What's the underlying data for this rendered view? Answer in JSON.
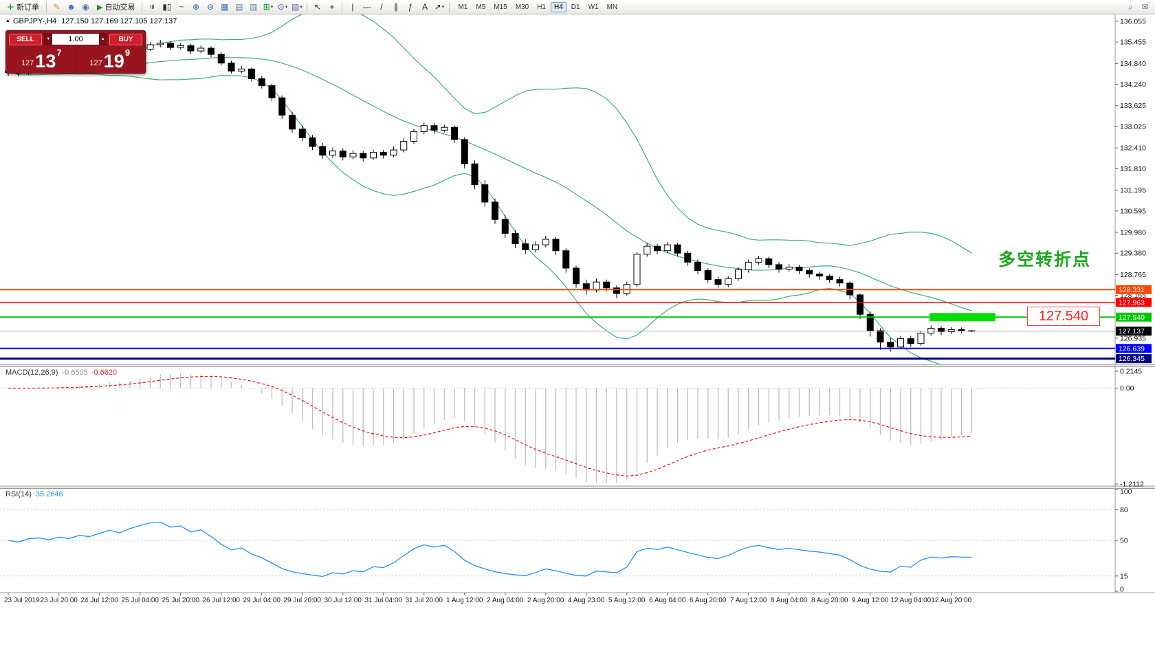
{
  "toolbar": {
    "caret_glyph": "▾",
    "timeframes": [
      "M1",
      "M5",
      "M15",
      "M30",
      "H1",
      "H4",
      "D1",
      "W1",
      "MN"
    ],
    "active_timeframe": "H4",
    "groups": [
      {
        "type": "button",
        "name": "new-order",
        "glyph": "＋",
        "glyph_color": "#13962a",
        "label": "新订单"
      },
      {
        "type": "sep"
      },
      {
        "type": "icon",
        "name": "metaeditor-icon",
        "glyph": "✎",
        "color": "#c9971c"
      },
      {
        "type": "icon",
        "name": "profile-icon",
        "glyph": "☻",
        "color": "#3b6fb5"
      },
      {
        "type": "icon",
        "name": "broadcast-icon",
        "glyph": "◉",
        "color": "#3b6fb5"
      },
      {
        "type": "button",
        "name": "autotrading",
        "glyph": "▶",
        "glyph_color": "#13962a",
        "label": "自动交易"
      },
      {
        "type": "sep"
      },
      {
        "type": "icon",
        "name": "bar-chart-icon",
        "glyph": "≡",
        "color": "#333333",
        "rot": true
      },
      {
        "type": "icon",
        "name": "candlestick-chart-icon",
        "glyph": "▮▯",
        "color": "#333333"
      },
      {
        "type": "icon",
        "name": "line-chart-icon",
        "glyph": "~",
        "color": "#1f7a1f"
      },
      {
        "type": "icon",
        "name": "zoom-in-icon",
        "glyph": "⊕",
        "color": "#2b5fb0"
      },
      {
        "type": "icon",
        "name": "zoom-out-icon",
        "glyph": "⊖",
        "color": "#2b5fb0"
      },
      {
        "type": "icon",
        "name": "tile-windows-icon",
        "glyph": "▦",
        "color": "#3b6fb5"
      },
      {
        "type": "icon",
        "name": "arrange-horizontal-icon",
        "glyph": "▤",
        "color": "#5d7fa8"
      },
      {
        "type": "icon",
        "name": "arrange-vertical-icon",
        "glyph": "▥",
        "color": "#5d7fa8"
      },
      {
        "type": "icon",
        "name": "indicators-icon",
        "glyph": "⊞",
        "color": "#13962a",
        "caret": true
      },
      {
        "type": "icon",
        "name": "periods-icon",
        "glyph": "⊙",
        "color": "#2b5fb0",
        "caret": true
      },
      {
        "type": "icon",
        "name": "templates-icon",
        "glyph": "▨",
        "color": "#7a5fb0",
        "caret": true
      },
      {
        "type": "sep"
      },
      {
        "type": "icon",
        "name": "cursor-icon",
        "glyph": "↖",
        "color": "#222222"
      },
      {
        "type": "icon",
        "name": "crosshair-icon",
        "glyph": "+",
        "color": "#222222"
      },
      {
        "type": "sep"
      },
      {
        "type": "icon",
        "name": "vertical-line-icon",
        "glyph": "|",
        "color": "#222222"
      },
      {
        "type": "icon",
        "name": "horizontal-line-icon",
        "glyph": "—",
        "color": "#222222"
      },
      {
        "type": "icon",
        "name": "trendline-icon",
        "glyph": "/",
        "color": "#222222"
      },
      {
        "type": "icon",
        "name": "channel-icon",
        "glyph": "∥",
        "color": "#222222"
      },
      {
        "type": "icon",
        "name": "fibonacci-icon",
        "glyph": "ƒ",
        "color": "#222222"
      },
      {
        "type": "icon",
        "name": "text-tool-icon",
        "glyph": "A",
        "color": "#222222"
      },
      {
        "type": "icon",
        "name": "arrows-tool-icon",
        "glyph": "↗",
        "color": "#222222",
        "caret": true
      },
      {
        "type": "sep"
      },
      {
        "type": "timeframes"
      },
      {
        "type": "spacer"
      },
      {
        "type": "icon",
        "name": "search-icon",
        "glyph": "⌕",
        "color": "#2b5fb0"
      },
      {
        "type": "icon",
        "name": "mail-icon",
        "glyph": "✉",
        "color": "#5d7fa8"
      }
    ]
  },
  "symbol_header": {
    "collapse_icon": "▲",
    "symbol": "GBPJPY-,H4",
    "ohlc": "127.150 127.169 127.105 127.137"
  },
  "trade_panel": {
    "sell_label": "SELL",
    "buy_label": "BUY",
    "volume": "1.00",
    "spinner_down": "▼",
    "spinner_up": "▲",
    "sell_price": {
      "prefix": "127",
      "big": "13",
      "sup": "7"
    },
    "buy_price": {
      "prefix": "127",
      "big": "19",
      "sup": "9"
    }
  },
  "annotation": {
    "text": "多空转折点",
    "color": "#1DA51D"
  },
  "price_callout": {
    "text": "127.540"
  },
  "indicators": {
    "macd": {
      "label": "MACD(12,26,9)",
      "value1": "-0.6505",
      "value2": "-0.6620",
      "axis": [
        {
          "text": "0.2145",
          "v": 0.2145
        },
        {
          "text": "0.00",
          "v": 0
        },
        {
          "text": "-1.2112",
          "v": -1.2112
        }
      ],
      "histogram_color": "#bdbdbd",
      "signal_color": "#ff0000"
    },
    "rsi": {
      "label": "RSI(14)",
      "value": "35.2646",
      "axis": [
        {
          "text": "100",
          "v": 100
        },
        {
          "text": "80",
          "v": 80
        },
        {
          "text": "50",
          "v": 50
        },
        {
          "text": "15",
          "v": 15
        },
        {
          "text": "0",
          "v": 0
        }
      ],
      "levels": [
        80,
        50,
        15
      ],
      "line_color": "#1E90FF"
    }
  },
  "chart_data": {
    "type": "candlestick",
    "symbol": "GBPJPY",
    "timeframe": "H4",
    "ylim": [
      126.18,
      136.23
    ],
    "price_axis_labels": [
      "136.055",
      "135.455",
      "134.840",
      "134.240",
      "133.625",
      "133.025",
      "132.410",
      "131.810",
      "131.195",
      "130.595",
      "129.980",
      "129.380",
      "128.765",
      "128.165",
      "126.935"
    ],
    "hlines": [
      {
        "label": "128.331",
        "price": 128.331,
        "color": "#FF4500",
        "width": 2
      },
      {
        "label": "127.963",
        "price": 127.963,
        "color": "#FF0000",
        "width": 1.5
      },
      {
        "label": "127.540",
        "price": 127.54,
        "color": "#00C800",
        "width": 2
      },
      {
        "label": "126.639",
        "price": 126.639,
        "color": "#0000FF",
        "width": 2
      },
      {
        "label": "126.345",
        "price": 126.345,
        "color": "#000080",
        "width": 3
      }
    ],
    "current_price": 127.137,
    "current_label": "127.137",
    "highlight_rect": {
      "price": 127.54,
      "color": "#00DE00"
    },
    "bollinger": {
      "period": 20,
      "deviation": 2,
      "color": "#3CB371"
    },
    "time_labels": [
      "23 Jul 2019",
      "23 Jul 20:00",
      "24 Jul 12:00",
      "25 Jul 04:00",
      "25 Jul 20:00",
      "26 Jul 12:00",
      "29 Jul 04:00",
      "29 Jul 20:00",
      "30 Jul 12:00",
      "31 Jul 04:00",
      "31 Jul 20:00",
      "1 Aug 12:00",
      "2 Aug 04:00",
      "2 Aug 20:00",
      "4 Aug 23:00",
      "5 Aug 12:00",
      "6 Aug 04:00",
      "6 Aug 20:00",
      "7 Aug 12:00",
      "8 Aug 04:00",
      "8 Aug 20:00",
      "9 Aug 12:00",
      "12 Aug 04:00",
      "12 Aug 20:00"
    ],
    "candles": [
      [
        134.58,
        134.7,
        134.48,
        134.62
      ],
      [
        134.62,
        134.68,
        134.47,
        134.55
      ],
      [
        134.55,
        134.74,
        134.5,
        134.68
      ],
      [
        134.68,
        134.8,
        134.62,
        134.72
      ],
      [
        134.72,
        134.78,
        134.56,
        134.65
      ],
      [
        134.65,
        134.82,
        134.6,
        134.75
      ],
      [
        134.75,
        134.83,
        134.62,
        134.7
      ],
      [
        134.7,
        134.9,
        134.66,
        134.82
      ],
      [
        134.82,
        134.88,
        134.7,
        134.78
      ],
      [
        134.78,
        134.98,
        134.74,
        134.9
      ],
      [
        134.9,
        135.1,
        134.85,
        135.02
      ],
      [
        135.02,
        135.08,
        134.88,
        134.95
      ],
      [
        134.95,
        135.18,
        134.92,
        135.12
      ],
      [
        135.12,
        135.32,
        135.06,
        135.25
      ],
      [
        135.25,
        135.45,
        135.2,
        135.38
      ],
      [
        135.38,
        135.52,
        135.3,
        135.42
      ],
      [
        135.42,
        135.48,
        135.22,
        135.3
      ],
      [
        135.3,
        135.43,
        135.24,
        135.35
      ],
      [
        135.35,
        135.4,
        135.12,
        135.2
      ],
      [
        135.2,
        135.36,
        135.14,
        135.28
      ],
      [
        135.28,
        135.33,
        135.02,
        135.1
      ],
      [
        135.1,
        135.16,
        134.78,
        134.85
      ],
      [
        134.85,
        134.92,
        134.55,
        134.62
      ],
      [
        134.62,
        134.78,
        134.56,
        134.68
      ],
      [
        134.68,
        134.72,
        134.32,
        134.4
      ],
      [
        134.4,
        134.48,
        134.12,
        134.2
      ],
      [
        134.2,
        134.26,
        133.75,
        133.85
      ],
      [
        133.85,
        133.92,
        133.25,
        133.35
      ],
      [
        133.35,
        133.45,
        132.85,
        132.95
      ],
      [
        132.95,
        133.05,
        132.6,
        132.7
      ],
      [
        132.7,
        132.78,
        132.35,
        132.45
      ],
      [
        132.45,
        132.55,
        132.1,
        132.2
      ],
      [
        132.2,
        132.42,
        132.12,
        132.32
      ],
      [
        132.32,
        132.4,
        132.05,
        132.15
      ],
      [
        132.15,
        132.35,
        132.08,
        132.25
      ],
      [
        132.25,
        132.32,
        132.02,
        132.12
      ],
      [
        132.12,
        132.36,
        132.06,
        132.28
      ],
      [
        132.28,
        132.35,
        132.1,
        132.2
      ],
      [
        132.2,
        132.45,
        132.14,
        132.35
      ],
      [
        132.35,
        132.7,
        132.28,
        132.6
      ],
      [
        132.6,
        132.96,
        132.52,
        132.88
      ],
      [
        132.88,
        133.14,
        132.8,
        133.05
      ],
      [
        133.05,
        133.12,
        132.82,
        132.92
      ],
      [
        132.92,
        133.08,
        132.85,
        133.0
      ],
      [
        133.0,
        133.05,
        132.55,
        132.65
      ],
      [
        132.65,
        132.72,
        131.82,
        131.95
      ],
      [
        131.95,
        132.05,
        131.22,
        131.35
      ],
      [
        131.35,
        131.48,
        130.72,
        130.85
      ],
      [
        130.85,
        130.95,
        130.22,
        130.35
      ],
      [
        130.35,
        130.48,
        129.82,
        129.95
      ],
      [
        129.95,
        130.05,
        129.52,
        129.65
      ],
      [
        129.65,
        129.78,
        129.35,
        129.48
      ],
      [
        129.48,
        129.72,
        129.4,
        129.62
      ],
      [
        129.62,
        129.88,
        129.55,
        129.78
      ],
      [
        129.78,
        129.85,
        129.32,
        129.45
      ],
      [
        129.45,
        129.52,
        128.82,
        128.95
      ],
      [
        128.95,
        129.02,
        128.38,
        128.5
      ],
      [
        128.5,
        128.62,
        128.18,
        128.32
      ],
      [
        128.32,
        128.65,
        128.25,
        128.55
      ],
      [
        128.55,
        128.62,
        128.28,
        128.38
      ],
      [
        128.38,
        128.45,
        128.08,
        128.22
      ],
      [
        128.22,
        128.56,
        128.15,
        128.48
      ],
      [
        128.48,
        129.42,
        128.4,
        129.35
      ],
      [
        129.35,
        129.68,
        129.28,
        129.58
      ],
      [
        129.58,
        129.65,
        129.35,
        129.45
      ],
      [
        129.45,
        129.7,
        129.38,
        129.62
      ],
      [
        129.62,
        129.68,
        129.28,
        129.38
      ],
      [
        129.38,
        129.45,
        129.02,
        129.12
      ],
      [
        129.12,
        129.2,
        128.78,
        128.88
      ],
      [
        128.88,
        128.95,
        128.52,
        128.62
      ],
      [
        128.62,
        128.7,
        128.38,
        128.48
      ],
      [
        128.48,
        128.72,
        128.4,
        128.65
      ],
      [
        128.65,
        128.98,
        128.58,
        128.9
      ],
      [
        128.9,
        129.2,
        128.82,
        129.12
      ],
      [
        129.12,
        129.3,
        129.05,
        129.22
      ],
      [
        129.22,
        129.28,
        128.95,
        129.05
      ],
      [
        129.05,
        129.12,
        128.82,
        128.92
      ],
      [
        128.92,
        129.06,
        128.85,
        128.98
      ],
      [
        128.98,
        129.04,
        128.78,
        128.88
      ],
      [
        128.88,
        128.95,
        128.68,
        128.78
      ],
      [
        128.78,
        128.85,
        128.62,
        128.72
      ],
      [
        128.72,
        128.78,
        128.52,
        128.62
      ],
      [
        128.62,
        128.7,
        128.42,
        128.52
      ],
      [
        128.52,
        128.58,
        128.05,
        128.18
      ],
      [
        128.18,
        128.22,
        127.48,
        127.62
      ],
      [
        127.62,
        127.7,
        126.98,
        127.15
      ],
      [
        127.15,
        127.22,
        126.6,
        126.82
      ],
      [
        126.82,
        126.95,
        126.55,
        126.68
      ],
      [
        126.68,
        127.0,
        126.62,
        126.92
      ],
      [
        126.92,
        127.0,
        126.68,
        126.78
      ],
      [
        126.78,
        127.15,
        126.72,
        127.08
      ],
      [
        127.08,
        127.3,
        127.0,
        127.22
      ],
      [
        127.22,
        127.28,
        127.02,
        127.12
      ],
      [
        127.12,
        127.25,
        127.05,
        127.18
      ],
      [
        127.18,
        127.24,
        127.08,
        127.15
      ],
      [
        127.15,
        127.169,
        127.105,
        127.137
      ]
    ]
  }
}
